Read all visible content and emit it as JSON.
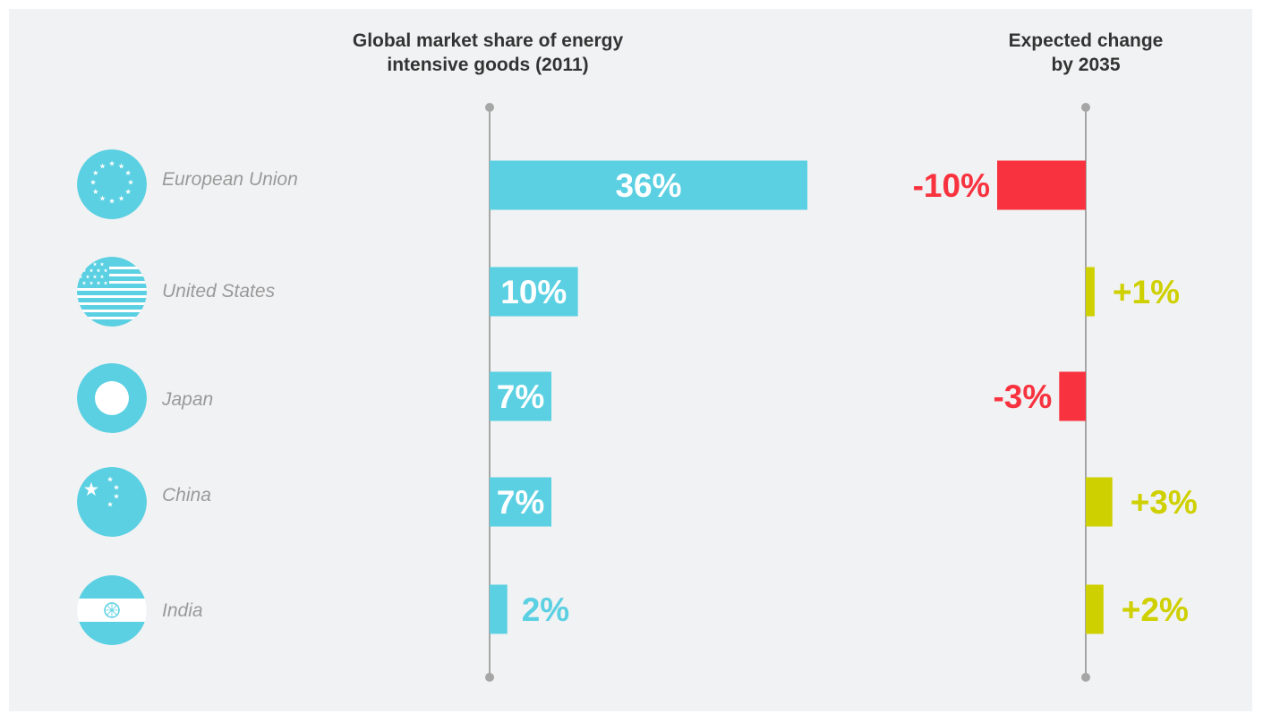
{
  "colors": {
    "share_bar": "#5bd0e2",
    "negative": "#f8333f",
    "positive": "#cfd000",
    "axis": "#a6a6a6",
    "heading": "#333333",
    "country_label": "#9a9a9a",
    "panel_background": "#f1f2f3"
  },
  "chart_data": {
    "type": "bar",
    "orientation": "horizontal",
    "categories": [
      "European Union",
      "United States",
      "Japan",
      "China",
      "India"
    ],
    "flag_icons": [
      "eu-flag-icon",
      "us-flag-icon",
      "japan-flag-icon",
      "china-flag-icon",
      "india-flag-icon"
    ],
    "panels": [
      {
        "title": "Global market share of energy\nintensive goods (2011)",
        "values": [
          36,
          10,
          7,
          7,
          2
        ],
        "labels": [
          "36%",
          "10%",
          "7%",
          "7%",
          "2%"
        ],
        "xlim": [
          0,
          100
        ]
      },
      {
        "title": "Expected change\nby 2035",
        "values": [
          -10,
          1,
          -3,
          3,
          2
        ],
        "labels": [
          "-10%",
          "+1%",
          "-3%",
          "+3%",
          "+2%"
        ],
        "xlim": [
          -20,
          20
        ]
      }
    ],
    "grid": false,
    "legend": "none"
  }
}
